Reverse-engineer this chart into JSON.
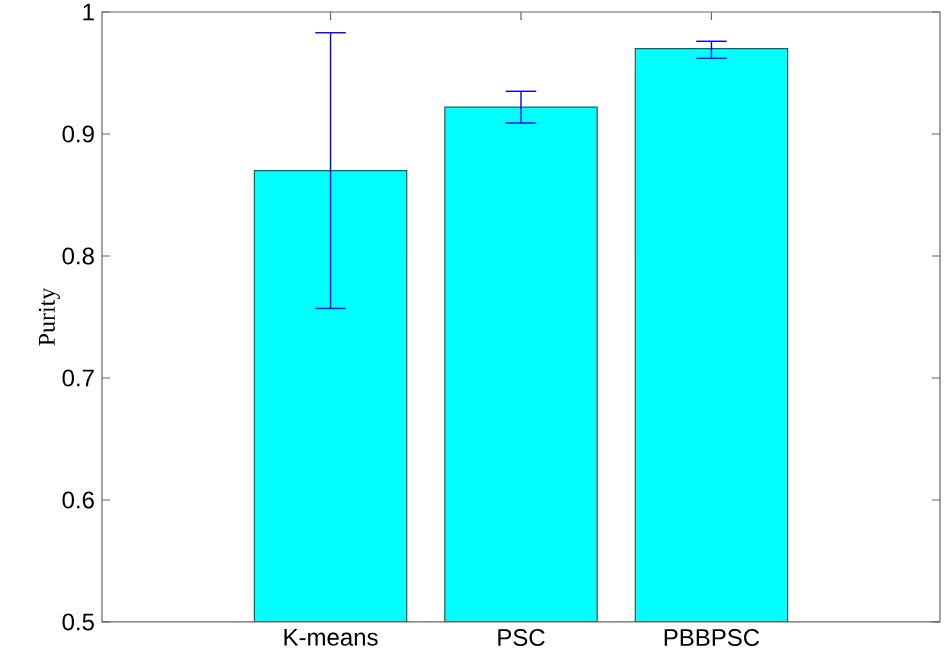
{
  "chart_data": {
    "type": "bar",
    "ylabel": "Purity",
    "categories": [
      "K-means",
      "PSC",
      "PBBPSC"
    ],
    "values": [
      0.87,
      0.922,
      0.97
    ],
    "errors": [
      [
        0.757,
        0.983
      ],
      [
        0.909,
        0.935
      ],
      [
        0.962,
        0.976
      ]
    ],
    "color": "#00ffff",
    "ylim": [
      0.5,
      1
    ],
    "yticks": [
      0.5,
      0.6,
      0.7,
      0.8,
      0.9,
      1
    ]
  }
}
